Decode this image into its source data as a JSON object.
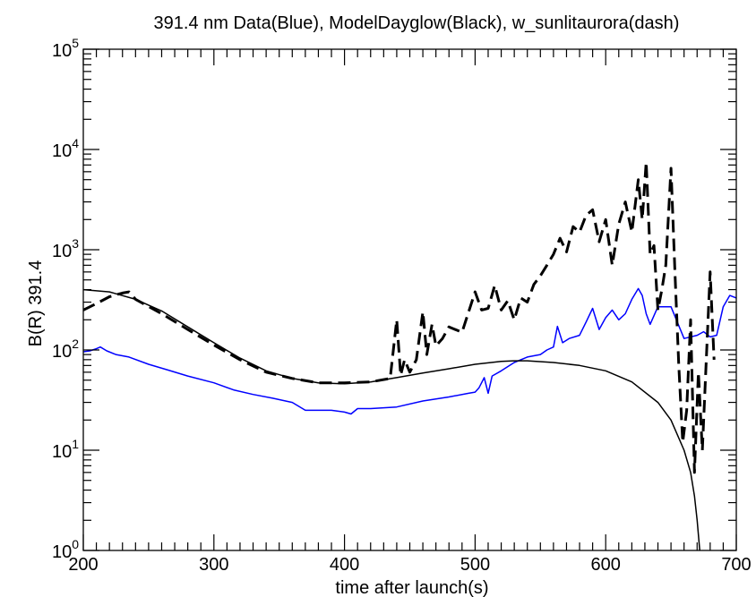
{
  "chart_data": {
    "type": "line",
    "title": "391.4 nm Data(Blue),  ModelDayglow(Black),   w_sunlitaurora(dash)",
    "xlabel": "time after launch(s)",
    "ylabel": "B(R) 391.4",
    "xlim": [
      200,
      700
    ],
    "ylim": [
      1,
      100000
    ],
    "yscale": "log",
    "x_ticks": [
      200,
      300,
      400,
      500,
      600,
      700
    ],
    "x_tick_labels": [
      "200",
      "300",
      "400",
      "500",
      "600",
      "700"
    ],
    "y_ticks": [
      1,
      10,
      100,
      1000,
      10000,
      100000
    ],
    "y_tick_labels": [
      {
        "base": "10",
        "exp": "0"
      },
      {
        "base": "10",
        "exp": "1"
      },
      {
        "base": "10",
        "exp": "2"
      },
      {
        "base": "10",
        "exp": "3"
      },
      {
        "base": "10",
        "exp": "4"
      },
      {
        "base": "10",
        "exp": "5"
      }
    ],
    "grid": false,
    "series": [
      {
        "name": "Data",
        "color": "#0000ff",
        "style": "solid",
        "x": [
          200,
          205,
          210,
          213,
          218,
          225,
          235,
          250,
          265,
          280,
          300,
          315,
          330,
          345,
          360,
          370,
          380,
          390,
          400,
          405,
          410,
          420,
          440,
          460,
          480,
          495,
          500,
          503,
          507,
          510,
          513,
          520,
          530,
          540,
          550,
          555,
          560,
          563,
          567,
          572,
          580,
          585,
          590,
          595,
          600,
          605,
          610,
          615,
          620,
          625,
          628,
          631,
          634,
          640,
          650,
          660,
          670,
          675,
          680,
          685,
          690,
          695,
          700
        ],
        "y": [
          96,
          98,
          103,
          107,
          98,
          90,
          85,
          72,
          63,
          55,
          47,
          40,
          36,
          33,
          30,
          25,
          25,
          25,
          24,
          23,
          26,
          26,
          27,
          31,
          34,
          37,
          38,
          42,
          53,
          37,
          55,
          62,
          75,
          85,
          90,
          100,
          107,
          172,
          118,
          130,
          140,
          190,
          260,
          160,
          210,
          250,
          200,
          230,
          320,
          410,
          350,
          230,
          180,
          270,
          270,
          130,
          140,
          152,
          135,
          140,
          270,
          350,
          330
        ]
      },
      {
        "name": "ModelDayglow",
        "color": "#000000",
        "style": "solid",
        "x": [
          200,
          220,
          240,
          260,
          280,
          300,
          320,
          340,
          360,
          380,
          400,
          420,
          440,
          460,
          480,
          500,
          520,
          530,
          540,
          560,
          580,
          600,
          620,
          640,
          650,
          660,
          665,
          668,
          670,
          672
        ],
        "y": [
          400,
          380,
          320,
          245,
          170,
          118,
          83,
          62,
          52,
          47,
          46,
          48,
          53,
          59,
          65,
          72,
          77,
          78,
          78,
          75,
          70,
          62,
          48,
          30,
          20,
          10,
          6,
          3.5,
          2,
          1
        ]
      },
      {
        "name": "w_sunlitaurora",
        "color": "#000000",
        "style": "dash",
        "x": [
          200,
          210,
          220,
          230,
          235,
          240,
          260,
          280,
          300,
          320,
          340,
          360,
          380,
          400,
          420,
          435,
          440,
          443,
          446,
          450,
          455,
          460,
          463,
          467,
          470,
          475,
          480,
          490,
          500,
          505,
          510,
          515,
          520,
          525,
          530,
          535,
          540,
          545,
          550,
          555,
          560,
          565,
          570,
          575,
          580,
          585,
          590,
          595,
          600,
          605,
          610,
          615,
          620,
          625,
          628,
          631,
          634,
          637,
          640,
          643,
          646,
          650,
          653,
          656,
          659,
          662,
          665,
          668,
          671,
          674,
          677,
          680,
          683
        ],
        "y": [
          250,
          290,
          340,
          370,
          380,
          320,
          230,
          160,
          112,
          80,
          60,
          52,
          47,
          47,
          48,
          52,
          200,
          56,
          80,
          60,
          80,
          240,
          90,
          180,
          110,
          130,
          170,
          150,
          380,
          250,
          260,
          440,
          250,
          310,
          200,
          330,
          300,
          450,
          550,
          700,
          900,
          1300,
          950,
          1700,
          1500,
          2200,
          2500,
          1200,
          2000,
          700,
          1800,
          3000,
          1500,
          5000,
          2000,
          7500,
          900,
          1100,
          250,
          400,
          700,
          6500,
          600,
          70,
          12,
          25,
          200,
          6,
          60,
          10,
          80,
          600,
          80
        ]
      }
    ]
  }
}
